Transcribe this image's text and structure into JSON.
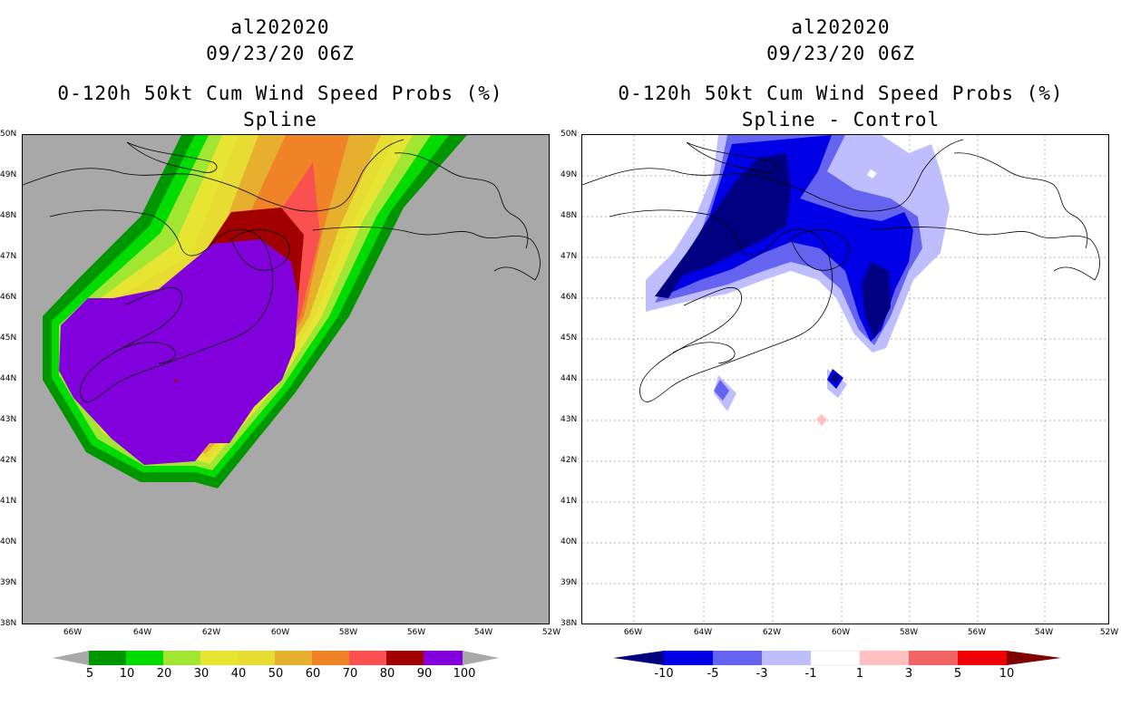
{
  "left_panel": {
    "storm_id": "al202020",
    "datetime": "09/23/20 06Z",
    "product": "0-120h 50kt Cum Wind Speed Probs (%)",
    "subtitle": "Spline",
    "background": "#a8a8a8",
    "colorbar": {
      "labels": [
        "5",
        "10",
        "20",
        "30",
        "40",
        "50",
        "60",
        "70",
        "80",
        "90",
        "100"
      ],
      "colors": [
        "#009600",
        "#00dc00",
        "#a0e632",
        "#e6e632",
        "#e6dc32",
        "#e6af2d",
        "#f08228",
        "#fa5050",
        "#a00000",
        "#8200dc"
      ],
      "end_color": "#a8a8a8"
    }
  },
  "right_panel": {
    "storm_id": "al202020",
    "datetime": "09/23/20 06Z",
    "product": "0-120h 50kt Cum Wind Speed Probs (%)",
    "subtitle": "Spline - Control",
    "background": "#ffffff",
    "colorbar": {
      "labels": [
        "-10",
        "-5",
        "-3",
        "-1",
        "1",
        "3",
        "5",
        "10"
      ],
      "colors": [
        "#0000e6",
        "#6464f0",
        "#bebeff",
        "#ffffff",
        "#ffc0c0",
        "#f06464",
        "#f00000"
      ],
      "end_low": "#000080",
      "end_high": "#800000"
    }
  },
  "lat_labels": [
    "50N",
    "49N",
    "48N",
    "47N",
    "46N",
    "45N",
    "44N",
    "43N",
    "42N",
    "41N",
    "40N",
    "39N",
    "38N"
  ],
  "lon_labels": [
    "66W",
    "64W",
    "62W",
    "60W",
    "58W",
    "56W",
    "54W",
    "52W"
  ]
}
